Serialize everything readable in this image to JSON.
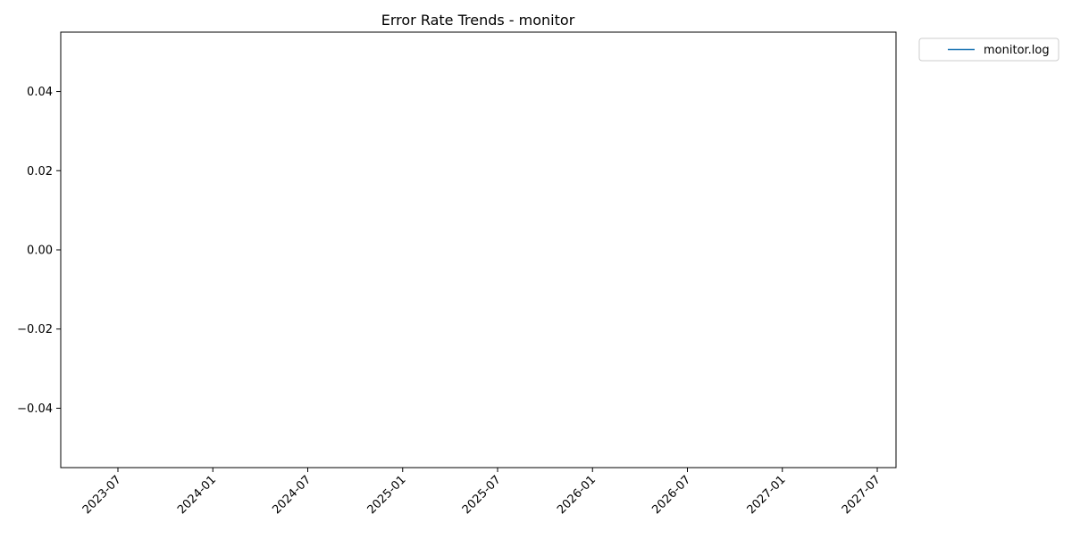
{
  "chart_data": {
    "type": "line",
    "title": "Error Rate Trends - monitor",
    "xlabel": "",
    "ylabel": "",
    "x_ticks": [
      "2023-07",
      "2024-01",
      "2024-07",
      "2025-01",
      "2025-07",
      "2026-01",
      "2026-07",
      "2027-01",
      "2027-07"
    ],
    "y_ticks": [
      "0.04",
      "0.02",
      "0.00",
      "−0.02",
      "−0.04"
    ],
    "y_tick_values": [
      0.04,
      0.02,
      0.0,
      -0.02,
      -0.04
    ],
    "ylim": [
      -0.055,
      0.055
    ],
    "grid": false,
    "legend_position": "outside-top-right",
    "series": [
      {
        "name": "monitor.log",
        "color": "#1f77b4",
        "x": [],
        "y": []
      }
    ]
  }
}
